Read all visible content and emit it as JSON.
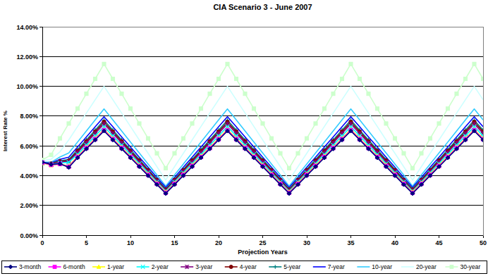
{
  "chart_data": {
    "type": "line",
    "title": "CIA Scenario 3 - June 2007",
    "x_label": "Projection Years",
    "y_label": "Interest Rate %",
    "x": [
      0,
      1,
      2,
      3,
      4,
      5,
      6,
      7,
      8,
      9,
      10,
      11,
      12,
      13,
      14,
      15,
      16,
      17,
      18,
      19,
      20,
      21,
      22,
      23,
      24,
      25,
      26,
      27,
      28,
      29,
      30,
      31,
      32,
      33,
      34,
      35,
      36,
      37,
      38,
      39,
      40,
      41,
      42,
      43,
      44,
      45,
      46,
      47,
      48,
      49,
      50
    ],
    "xlim": [
      0,
      50
    ],
    "xticks": [
      0,
      5,
      10,
      15,
      20,
      25,
      30,
      35,
      40,
      45,
      50
    ],
    "ylim": [
      0,
      14
    ],
    "yticks": [
      {
        "value": 0,
        "label": "0.00%"
      },
      {
        "value": 2,
        "label": "2.00%"
      },
      {
        "value": 4,
        "label": "4.00%"
      },
      {
        "value": 6,
        "label": "6.00%"
      },
      {
        "value": 8,
        "label": "8.00%"
      },
      {
        "value": 10,
        "label": "10.00%"
      },
      {
        "value": 12,
        "label": "12.00%"
      },
      {
        "value": 14,
        "label": "14.00%"
      }
    ],
    "grid": true,
    "legend": "bottom",
    "series": [
      {
        "name": "3-month",
        "color": "#000080",
        "marker": "diamond",
        "values": [
          4.9,
          4.75,
          4.8,
          4.55,
          5.2,
          5.8,
          6.4,
          7.0,
          6.4,
          5.8,
          5.2,
          4.6,
          4.0,
          3.4,
          2.8,
          3.4,
          4.0,
          4.6,
          5.2,
          5.8,
          6.4,
          7.0,
          6.4,
          5.8,
          5.2,
          4.6,
          4.0,
          3.4,
          2.8,
          3.4,
          4.0,
          4.6,
          5.2,
          5.8,
          6.4,
          7.0,
          6.4,
          5.8,
          5.2,
          4.6,
          4.0,
          3.4,
          2.8,
          3.4,
          4.0,
          4.6,
          5.2,
          5.8,
          6.4,
          7.0,
          6.4
        ]
      },
      {
        "name": "6-month",
        "color": "#ff00ff",
        "marker": "square",
        "values": [
          4.88,
          4.72,
          4.78,
          4.6,
          5.25,
          5.85,
          6.45,
          7.05,
          6.45,
          5.85,
          5.25,
          4.65,
          4.05,
          3.45,
          2.85,
          3.45,
          4.05,
          4.65,
          5.25,
          5.85,
          6.45,
          7.05,
          6.45,
          5.85,
          5.25,
          4.65,
          4.05,
          3.45,
          2.85,
          3.45,
          4.05,
          4.65,
          5.25,
          5.85,
          6.45,
          7.05,
          6.45,
          5.85,
          5.25,
          4.65,
          4.05,
          3.45,
          2.85,
          3.45,
          4.05,
          4.65,
          5.25,
          5.85,
          6.45,
          7.05,
          6.45
        ]
      },
      {
        "name": "1-year",
        "color": "#ffff00",
        "marker": "triangle",
        "values": [
          4.85,
          4.7,
          4.78,
          4.65,
          5.3,
          5.9,
          6.5,
          7.1,
          6.5,
          5.9,
          5.3,
          4.7,
          4.1,
          3.5,
          2.9,
          3.5,
          4.1,
          4.7,
          5.3,
          5.9,
          6.5,
          7.1,
          6.5,
          5.9,
          5.3,
          4.7,
          4.1,
          3.5,
          2.9,
          3.5,
          4.1,
          4.7,
          5.3,
          5.9,
          6.5,
          7.1,
          6.5,
          5.9,
          5.3,
          4.7,
          4.1,
          3.5,
          2.9,
          3.5,
          4.1,
          4.7,
          5.3,
          5.9,
          6.5,
          7.1,
          6.5
        ]
      },
      {
        "name": "2-year",
        "color": "#00ffff",
        "marker": "x",
        "values": [
          4.85,
          4.75,
          4.85,
          4.9,
          5.43,
          6.05,
          6.67,
          7.29,
          6.67,
          6.05,
          5.43,
          4.81,
          4.19,
          3.57,
          2.95,
          3.57,
          4.19,
          4.81,
          5.43,
          6.05,
          6.67,
          7.29,
          6.67,
          6.05,
          5.43,
          4.81,
          4.19,
          3.57,
          2.95,
          3.57,
          4.19,
          4.81,
          5.43,
          6.05,
          6.67,
          7.29,
          6.67,
          6.05,
          5.43,
          4.81,
          4.19,
          3.57,
          2.95,
          3.57,
          4.19,
          4.81,
          5.43,
          6.05,
          6.67,
          7.29,
          6.67
        ]
      },
      {
        "name": "3-year",
        "color": "#800080",
        "marker": "star",
        "values": [
          4.85,
          4.78,
          4.9,
          4.95,
          5.56,
          6.2,
          6.84,
          7.48,
          6.84,
          6.2,
          5.56,
          4.92,
          4.28,
          3.64,
          3.0,
          3.64,
          4.28,
          4.92,
          5.56,
          6.2,
          6.84,
          7.48,
          6.84,
          6.2,
          5.56,
          4.92,
          4.28,
          3.64,
          3.0,
          3.64,
          4.28,
          4.92,
          5.56,
          6.2,
          6.84,
          7.48,
          6.84,
          6.2,
          5.56,
          4.92,
          4.28,
          3.64,
          3.0,
          3.64,
          4.28,
          4.92,
          5.56,
          6.2,
          6.84,
          7.48,
          6.84
        ]
      },
      {
        "name": "4-year",
        "color": "#800000",
        "marker": "circle",
        "values": [
          4.85,
          4.8,
          4.95,
          5.0,
          5.65,
          6.3,
          6.95,
          7.6,
          6.95,
          6.3,
          5.65,
          5.0,
          4.35,
          3.7,
          3.05,
          3.7,
          4.35,
          5.0,
          5.65,
          6.3,
          6.95,
          7.6,
          6.95,
          6.3,
          5.65,
          5.0,
          4.35,
          3.7,
          3.05,
          3.7,
          4.35,
          5.0,
          5.65,
          6.3,
          6.95,
          7.6,
          6.95,
          6.3,
          5.65,
          5.0,
          4.35,
          3.7,
          3.05,
          3.7,
          4.35,
          5.0,
          5.65,
          6.3,
          6.95,
          7.6,
          6.95
        ]
      },
      {
        "name": "5-year",
        "color": "#008080",
        "marker": "plus",
        "values": [
          4.85,
          4.82,
          5.0,
          5.08,
          5.74,
          6.4,
          7.06,
          7.72,
          7.06,
          6.4,
          5.74,
          5.08,
          4.42,
          3.76,
          3.1,
          3.76,
          4.42,
          5.08,
          5.74,
          6.4,
          7.06,
          7.72,
          7.06,
          6.4,
          5.74,
          5.08,
          4.42,
          3.76,
          3.1,
          3.76,
          4.42,
          5.08,
          5.74,
          6.4,
          7.06,
          7.72,
          7.06,
          6.4,
          5.74,
          5.08,
          4.42,
          3.76,
          3.1,
          3.76,
          4.42,
          5.08,
          5.74,
          6.4,
          7.06,
          7.72,
          7.06
        ]
      },
      {
        "name": "7-year",
        "color": "#0000ff",
        "marker": "none",
        "values": [
          4.87,
          4.85,
          5.1,
          5.24,
          5.92,
          6.6,
          7.28,
          7.96,
          7.28,
          6.6,
          5.92,
          5.24,
          4.56,
          3.88,
          3.2,
          3.88,
          4.56,
          5.24,
          5.92,
          6.6,
          7.28,
          7.96,
          7.28,
          6.6,
          5.92,
          5.24,
          4.56,
          3.88,
          3.2,
          3.88,
          4.56,
          5.24,
          5.92,
          6.6,
          7.28,
          7.96,
          7.28,
          6.6,
          5.92,
          5.24,
          4.56,
          3.88,
          3.2,
          3.88,
          4.56,
          5.24,
          5.92,
          6.6,
          7.28,
          7.96,
          7.28
        ]
      },
      {
        "name": "10-year",
        "color": "#33ccff",
        "marker": "none",
        "values": [
          4.9,
          4.9,
          5.25,
          5.52,
          6.26,
          7.0,
          7.74,
          8.48,
          7.74,
          7.0,
          6.26,
          5.52,
          4.78,
          4.04,
          3.3,
          4.04,
          4.78,
          5.52,
          6.26,
          7.0,
          7.74,
          8.48,
          7.74,
          7.0,
          6.26,
          5.52,
          4.78,
          4.04,
          3.3,
          4.04,
          4.78,
          5.52,
          6.26,
          7.0,
          7.74,
          8.48,
          7.74,
          7.0,
          6.26,
          5.52,
          4.78,
          4.04,
          3.3,
          4.04,
          4.78,
          5.52,
          6.26,
          7.0,
          7.74,
          8.48,
          7.74
        ]
      },
      {
        "name": "20-year",
        "color": "#ccffff",
        "marker": "none",
        "values": [
          5.0,
          5.1,
          5.6,
          6.4,
          7.3,
          8.2,
          9.1,
          10.0,
          9.1,
          8.2,
          7.3,
          6.4,
          5.5,
          4.6,
          3.7,
          4.6,
          5.5,
          6.4,
          7.3,
          8.2,
          9.1,
          10.0,
          9.1,
          8.2,
          7.3,
          6.4,
          5.5,
          4.6,
          3.7,
          4.6,
          5.5,
          6.4,
          7.3,
          8.2,
          9.1,
          10.0,
          9.1,
          8.2,
          7.3,
          6.4,
          5.5,
          4.6,
          3.7,
          4.6,
          5.5,
          6.4,
          7.3,
          8.2,
          9.1,
          10.0,
          9.1
        ]
      },
      {
        "name": "30-year",
        "color": "#ccffcc",
        "marker": "square",
        "values": [
          5.05,
          5.4,
          6.5,
          7.5,
          8.5,
          9.5,
          10.5,
          11.5,
          10.5,
          9.5,
          8.5,
          7.5,
          6.5,
          5.5,
          4.5,
          5.5,
          6.5,
          7.5,
          8.5,
          9.5,
          10.5,
          11.5,
          10.5,
          9.5,
          8.5,
          7.5,
          6.5,
          5.5,
          4.5,
          5.5,
          6.5,
          7.5,
          8.5,
          9.5,
          10.5,
          11.5,
          10.5,
          9.5,
          8.5,
          7.5,
          6.5,
          5.5,
          4.5,
          5.5,
          6.5,
          7.5,
          8.5,
          9.5,
          10.5,
          11.5,
          10.5
        ]
      }
    ]
  }
}
